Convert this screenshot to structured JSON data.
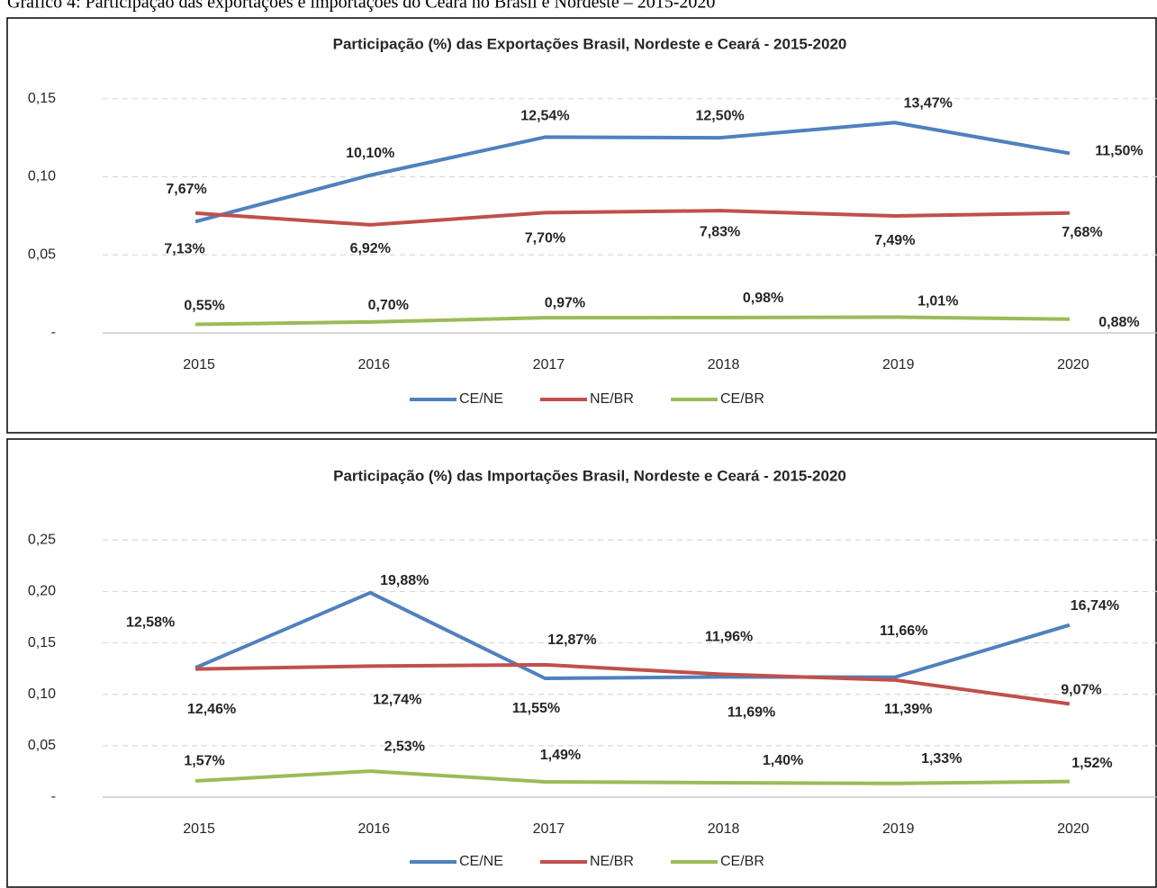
{
  "caption": "Gráfico 4: Participação das exportações e importações do Ceará no Brasil e Nordeste – 2015-2020",
  "chart_data": [
    {
      "type": "line",
      "title": "Participação (%) das Exportações Brasil, Nordeste e Ceará - 2015-2020",
      "categories": [
        "2015",
        "2016",
        "2017",
        "2018",
        "2019",
        "2020"
      ],
      "series": [
        {
          "name": "CE/NE",
          "color": "#4f81bd",
          "values": [
            0.0713,
            0.101,
            0.1254,
            0.125,
            0.1347,
            0.115
          ],
          "value_labels": [
            "7,13%",
            "10,10%",
            "12,54%",
            "12,50%",
            "13,47%",
            "11,50%"
          ]
        },
        {
          "name": "NE/BR",
          "color": "#c0504d",
          "values": [
            0.0767,
            0.0692,
            0.077,
            0.0783,
            0.0749,
            0.0768
          ],
          "value_labels": [
            "7,67%",
            "6,92%",
            "7,70%",
            "7,83%",
            "7,49%",
            "7,68%"
          ]
        },
        {
          "name": "CE/BR",
          "color": "#9bbb59",
          "values": [
            0.0055,
            0.007,
            0.0097,
            0.0098,
            0.0101,
            0.0088
          ],
          "value_labels": [
            "0,55%",
            "0,70%",
            "0,97%",
            "0,98%",
            "1,01%",
            "0,88%"
          ]
        }
      ],
      "ylim": [
        0,
        0.17
      ],
      "yticks": [
        {
          "value": 0,
          "label": "-"
        },
        {
          "value": 0.05,
          "label": "0,05"
        },
        {
          "value": 0.1,
          "label": "0,10"
        },
        {
          "value": 0.15,
          "label": "0,15"
        }
      ],
      "grid": true,
      "legend": "bottom"
    },
    {
      "type": "line",
      "title": "Participação (%) das Importações Brasil, Nordeste e Ceará - 2015-2020",
      "categories": [
        "2015",
        "2016",
        "2017",
        "2018",
        "2019",
        "2020"
      ],
      "series": [
        {
          "name": "CE/NE",
          "color": "#4f81bd",
          "values": [
            0.1258,
            0.1988,
            0.1155,
            0.1169,
            0.1166,
            0.1674
          ],
          "value_labels": [
            "12,58%",
            "19,88%",
            "11,55%",
            "11,69%",
            "11,66%",
            "16,74%"
          ]
        },
        {
          "name": "NE/BR",
          "color": "#c0504d",
          "values": [
            0.1246,
            0.1274,
            0.1287,
            0.1196,
            0.1139,
            0.0907
          ],
          "value_labels": [
            "12,46%",
            "12,74%",
            "12,87%",
            "11,96%",
            "11,39%",
            "9,07%"
          ]
        },
        {
          "name": "CE/BR",
          "color": "#9bbb59",
          "values": [
            0.0157,
            0.0253,
            0.0149,
            0.014,
            0.0133,
            0.0152
          ],
          "value_labels": [
            "1,57%",
            "2,53%",
            "1,49%",
            "1,40%",
            "1,33%",
            "1,52%"
          ]
        }
      ],
      "ylim": [
        0,
        0.28
      ],
      "yticks": [
        {
          "value": 0,
          "label": "-"
        },
        {
          "value": 0.05,
          "label": "0,05"
        },
        {
          "value": 0.1,
          "label": "0,10"
        },
        {
          "value": 0.15,
          "label": "0,15"
        },
        {
          "value": 0.2,
          "label": "0,20"
        },
        {
          "value": 0.25,
          "label": "0,25"
        }
      ],
      "grid": true,
      "legend": "bottom"
    }
  ]
}
